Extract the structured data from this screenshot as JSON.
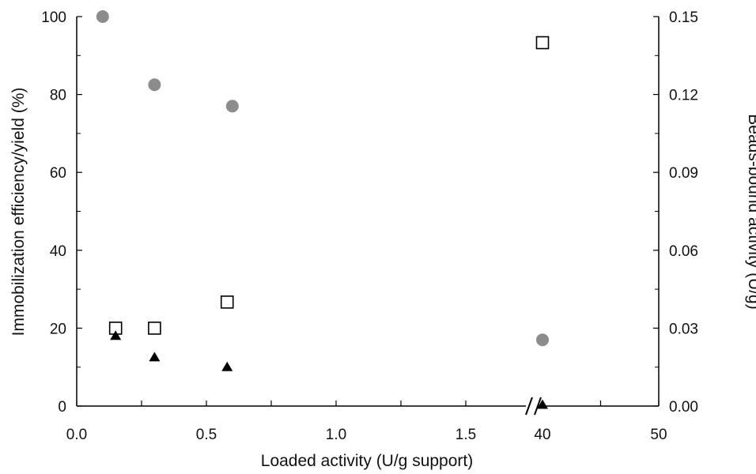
{
  "chart_data": {
    "type": "scatter",
    "xlabel": "Loaded activity (U/g support)",
    "ylabel_left": "Immobilization efficiency/yield (%)",
    "ylabel_right": "Beads-bound activity (U/g)",
    "x_axis": {
      "segments": [
        {
          "range": [
            0,
            1.75
          ],
          "ticks": [
            "0.0",
            "0.5",
            "1.0",
            "1.5"
          ],
          "tick_values": [
            0,
            0.5,
            1.0,
            1.5
          ]
        },
        {
          "range": [
            40,
            50
          ],
          "ticks": [
            "40",
            "50"
          ],
          "tick_values": [
            40,
            50
          ]
        }
      ],
      "axis_break": "between 1.75 and 40"
    },
    "y_left": {
      "range": [
        0,
        100
      ],
      "ticks": [
        "0",
        "20",
        "40",
        "60",
        "80",
        "100"
      ],
      "tick_values": [
        0,
        20,
        40,
        60,
        80,
        100
      ]
    },
    "y_right": {
      "range": [
        0,
        0.15
      ],
      "ticks": [
        "0.00",
        "0.03",
        "0.06",
        "0.09",
        "0.12",
        "0.15"
      ],
      "tick_values": [
        0,
        0.03,
        0.06,
        0.09,
        0.12,
        0.15
      ]
    },
    "grid": false,
    "series": [
      {
        "marker": "filled-circle",
        "color": "#8c8c8c",
        "axis": "left",
        "x": [
          0.1,
          0.3,
          0.6,
          40
        ],
        "y": [
          100,
          82.5,
          77,
          17
        ]
      },
      {
        "marker": "open-square",
        "color": "#000000",
        "axis": "left",
        "x": [
          0.15,
          0.3,
          0.58,
          40
        ],
        "y": [
          20,
          20,
          26.7,
          93.3
        ]
      },
      {
        "marker": "filled-triangle",
        "color": "#000000",
        "axis": "left",
        "x": [
          0.15,
          0.3,
          0.58,
          40
        ],
        "y": [
          18,
          12.5,
          10,
          0.3
        ]
      }
    ]
  }
}
